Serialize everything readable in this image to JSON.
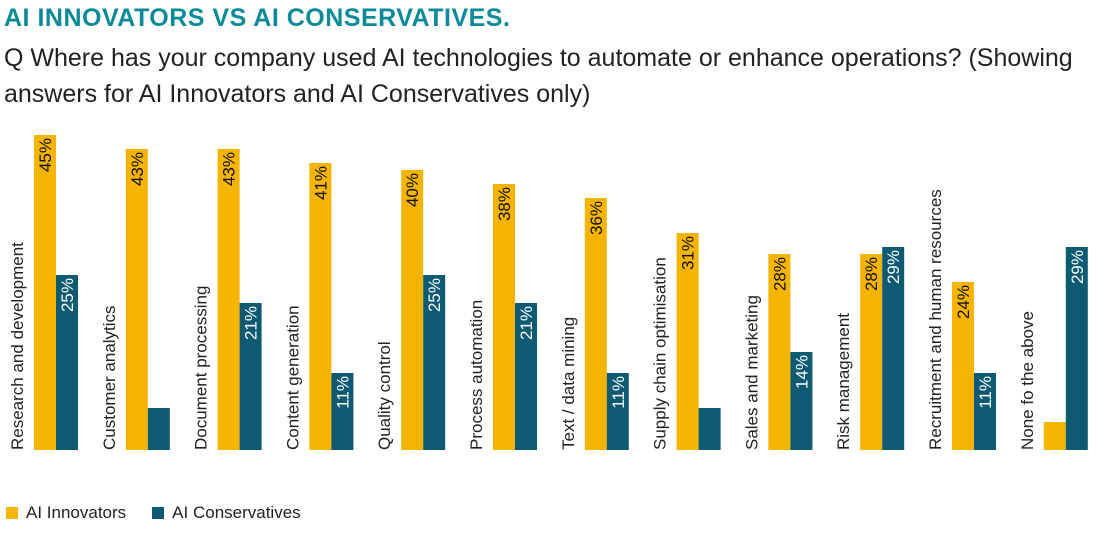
{
  "title": "AI INNOVATORS VS AI CONSERVATIVES.",
  "subtitle": "Q Where has your company used AI technologies to automate or enhance operations? (Showing answers for AI Innovators and AI Conservatives only)",
  "colors": {
    "innovators": "#f5b400",
    "conservatives": "#0e5a72",
    "title": "#0b8a9a"
  },
  "chart_data": {
    "type": "bar",
    "title": "AI INNOVATORS VS AI CONSERVATIVES.",
    "categories": [
      "Research and development",
      "Customer analytics",
      "Document processing",
      "Content generation",
      "Quality control",
      "Process automation",
      "Text / data mining",
      "Supply chain optimisation",
      "Sales and marketing",
      "Risk management",
      "Recruitment and human resources",
      "None fo the above"
    ],
    "series": [
      {
        "name": "AI Innovators",
        "values": [
          45,
          43,
          43,
          41,
          40,
          38,
          36,
          31,
          28,
          28,
          24,
          4
        ],
        "labels": [
          "45%",
          "43%",
          "43%",
          "41%",
          "40%",
          "38%",
          "36%",
          "31%",
          "28%",
          "28%",
          "24%",
          ""
        ]
      },
      {
        "name": "AI Conservatives",
        "values": [
          25,
          6,
          21,
          11,
          25,
          21,
          11,
          6,
          14,
          29,
          11,
          29
        ],
        "labels": [
          "25%",
          "",
          "21%",
          "11%",
          "25%",
          "21%",
          "11%",
          "",
          "14%",
          "29%",
          "11%",
          "29%"
        ]
      }
    ],
    "ylim": [
      0,
      45
    ],
    "grid": false,
    "legend": "bottom-left"
  }
}
